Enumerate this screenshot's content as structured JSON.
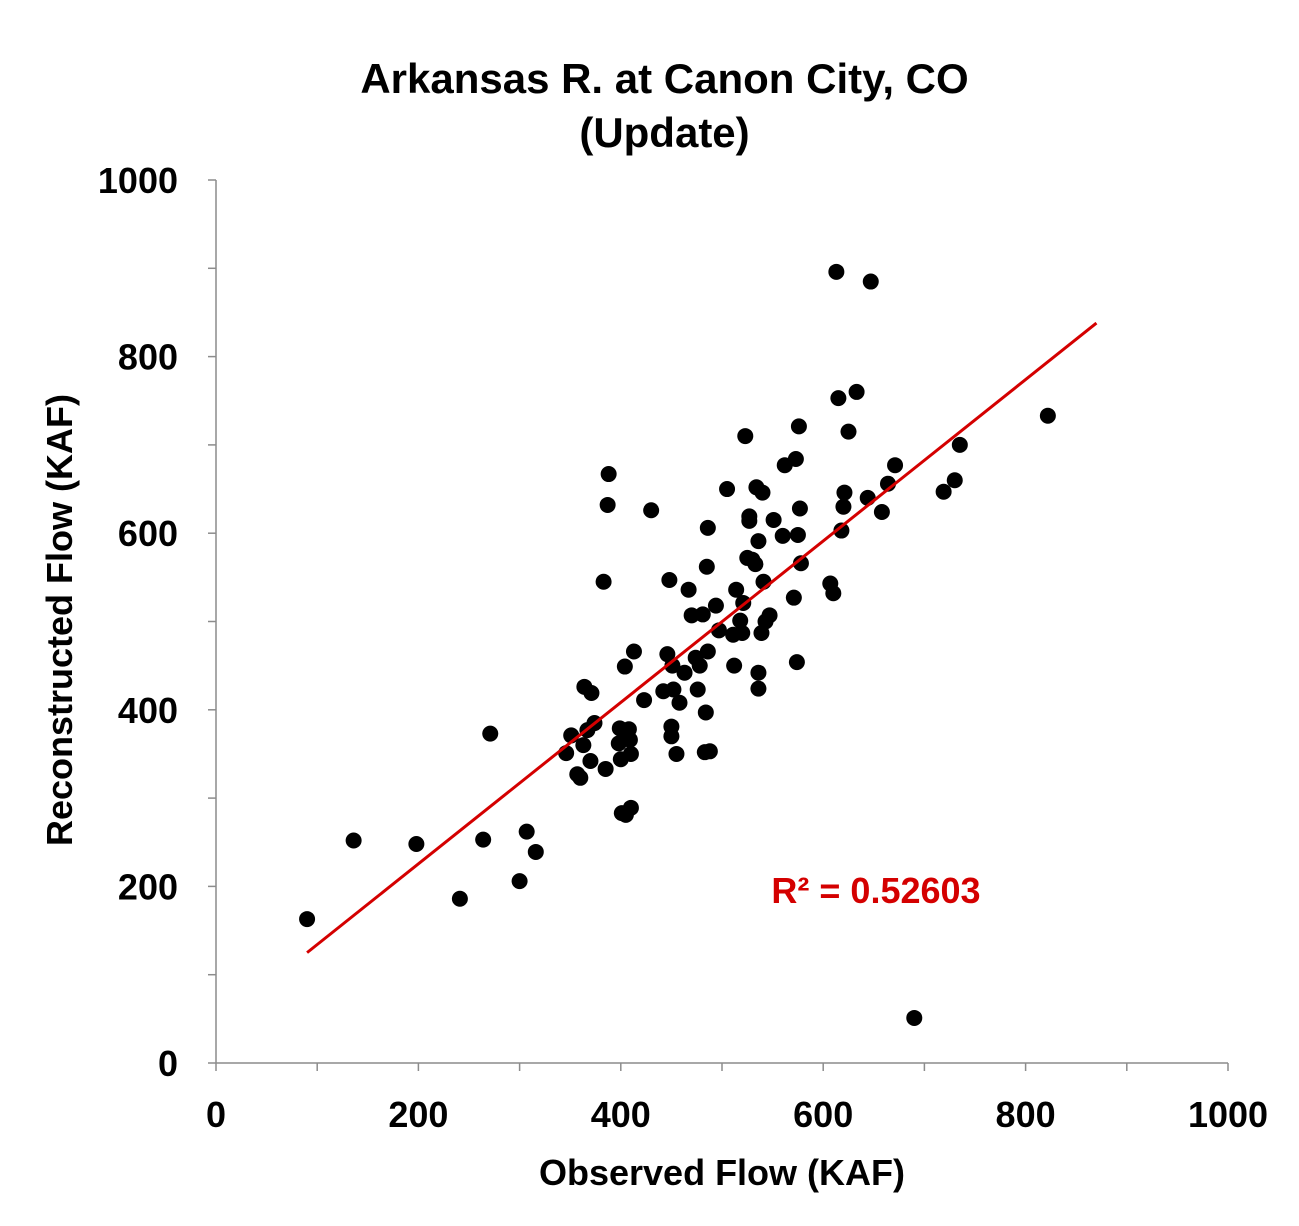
{
  "chart_data": {
    "type": "scatter",
    "title": "Arkansas R. at Canon City, CO",
    "subtitle": "(Update)",
    "xlabel": "Observed Flow (KAF)",
    "ylabel": "Reconstructed Flow (KAF)",
    "xlim": [
      0,
      1000
    ],
    "ylim": [
      0,
      1000
    ],
    "x_ticks": [
      "0",
      "200",
      "400",
      "600",
      "800",
      "1000"
    ],
    "y_ticks": [
      "0",
      "200",
      "400",
      "600",
      "800",
      "1000"
    ],
    "grid": false,
    "marker_color": "#000000",
    "trendline": {
      "x": [
        90,
        870
      ],
      "y": [
        125,
        838
      ],
      "color": "#d40000"
    },
    "annotation": {
      "text": "R² = 0.52603",
      "color": "#d40000"
    },
    "points": [
      [
        90,
        163
      ],
      [
        136,
        252
      ],
      [
        198,
        248
      ],
      [
        241,
        186
      ],
      [
        264,
        253
      ],
      [
        271,
        373
      ],
      [
        300,
        206
      ],
      [
        307,
        262
      ],
      [
        316,
        239
      ],
      [
        346,
        351
      ],
      [
        351,
        371
      ],
      [
        357,
        327
      ],
      [
        360,
        323
      ],
      [
        363,
        360
      ],
      [
        364,
        426
      ],
      [
        367,
        377
      ],
      [
        370,
        342
      ],
      [
        371,
        419
      ],
      [
        374,
        385
      ],
      [
        383,
        545
      ],
      [
        385,
        333
      ],
      [
        387,
        632
      ],
      [
        388,
        667
      ],
      [
        398,
        362
      ],
      [
        399,
        379
      ],
      [
        400,
        344
      ],
      [
        401,
        283
      ],
      [
        404,
        449
      ],
      [
        405,
        281
      ],
      [
        406,
        368
      ],
      [
        408,
        378
      ],
      [
        409,
        366
      ],
      [
        410,
        350
      ],
      [
        410,
        289
      ],
      [
        413,
        466
      ],
      [
        423,
        411
      ],
      [
        430,
        626
      ],
      [
        442,
        421
      ],
      [
        446,
        463
      ],
      [
        448,
        547
      ],
      [
        450,
        381
      ],
      [
        450,
        370
      ],
      [
        451,
        450
      ],
      [
        452,
        423
      ],
      [
        455,
        350
      ],
      [
        458,
        408
      ],
      [
        463,
        442
      ],
      [
        467,
        536
      ],
      [
        470,
        507
      ],
      [
        474,
        459
      ],
      [
        476,
        423
      ],
      [
        478,
        450
      ],
      [
        481,
        508
      ],
      [
        483,
        352
      ],
      [
        484,
        397
      ],
      [
        485,
        562
      ],
      [
        486,
        606
      ],
      [
        486,
        466
      ],
      [
        488,
        353
      ],
      [
        494,
        518
      ],
      [
        497,
        490
      ],
      [
        505,
        650
      ],
      [
        511,
        485
      ],
      [
        512,
        450
      ],
      [
        514,
        536
      ],
      [
        518,
        501
      ],
      [
        520,
        487
      ],
      [
        521,
        521
      ],
      [
        523,
        710
      ],
      [
        525,
        572
      ],
      [
        527,
        614
      ],
      [
        527,
        619
      ],
      [
        530,
        570
      ],
      [
        533,
        565
      ],
      [
        534,
        652
      ],
      [
        536,
        591
      ],
      [
        536,
        442
      ],
      [
        536,
        424
      ],
      [
        539,
        487
      ],
      [
        540,
        646
      ],
      [
        541,
        545
      ],
      [
        543,
        500
      ],
      [
        547,
        507
      ],
      [
        551,
        615
      ],
      [
        560,
        597
      ],
      [
        562,
        677
      ],
      [
        571,
        527
      ],
      [
        573,
        684
      ],
      [
        574,
        454
      ],
      [
        575,
        598
      ],
      [
        576,
        721
      ],
      [
        577,
        628
      ],
      [
        578,
        566
      ],
      [
        607,
        543
      ],
      [
        610,
        532
      ],
      [
        613,
        896
      ],
      [
        615,
        753
      ],
      [
        618,
        603
      ],
      [
        620,
        630
      ],
      [
        621,
        646
      ],
      [
        625,
        715
      ],
      [
        633,
        760
      ],
      [
        644,
        640
      ],
      [
        647,
        885
      ],
      [
        658,
        624
      ],
      [
        664,
        656
      ],
      [
        671,
        677
      ],
      [
        690,
        51
      ],
      [
        719,
        647
      ],
      [
        730,
        660
      ],
      [
        735,
        700
      ],
      [
        822,
        733
      ]
    ]
  }
}
